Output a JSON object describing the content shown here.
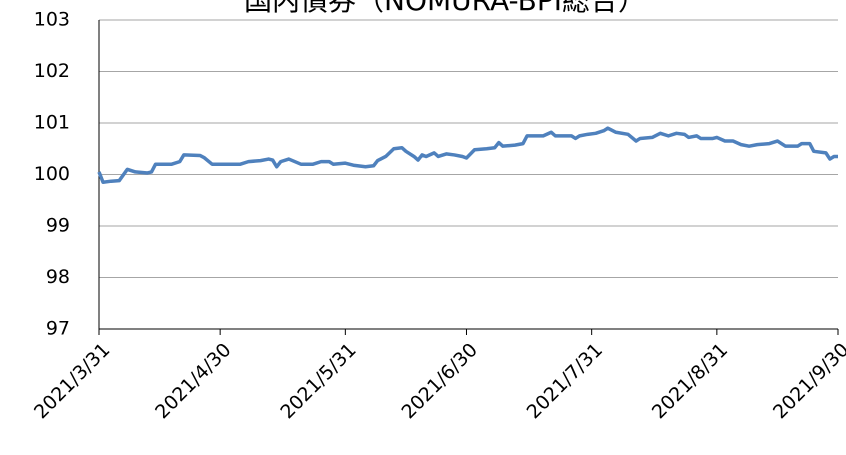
{
  "chart_data": {
    "type": "line",
    "title": "国内債券（NOMURA-BPI総合）",
    "x": [
      "2021/3/31",
      "2021/4/1",
      "2021/4/3",
      "2021/4/5",
      "2021/4/7",
      "2021/4/9",
      "2021/4/12",
      "2021/4/13",
      "2021/4/14",
      "2021/4/18",
      "2021/4/20",
      "2021/4/21",
      "2021/4/25",
      "2021/4/26",
      "2021/4/28",
      "2021/5/5",
      "2021/5/7",
      "2021/5/10",
      "2021/5/12",
      "2021/5/13",
      "2021/5/14",
      "2021/5/15",
      "2021/5/17",
      "2021/5/20",
      "2021/5/23",
      "2021/5/25",
      "2021/5/27",
      "2021/5/28",
      "2021/5/31",
      "2021/6/2",
      "2021/6/5",
      "2021/6/7",
      "2021/6/8",
      "2021/6/10",
      "2021/6/12",
      "2021/6/14",
      "2021/6/15",
      "2021/6/17",
      "2021/6/18",
      "2021/6/19",
      "2021/6/20",
      "2021/6/22",
      "2021/6/23",
      "2021/6/25",
      "2021/6/27",
      "2021/6/29",
      "2021/6/30",
      "2021/7/2",
      "2021/7/5",
      "2021/7/7",
      "2021/7/8",
      "2021/7/9",
      "2021/7/12",
      "2021/7/14",
      "2021/7/15",
      "2021/7/18",
      "2021/7/19",
      "2021/7/21",
      "2021/7/22",
      "2021/7/26",
      "2021/7/27",
      "2021/7/28",
      "2021/7/30",
      "2021/8/1",
      "2021/8/3",
      "2021/8/4",
      "2021/8/6",
      "2021/8/9",
      "2021/8/11",
      "2021/8/12",
      "2021/8/15",
      "2021/8/17",
      "2021/8/19",
      "2021/8/21",
      "2021/8/23",
      "2021/8/24",
      "2021/8/26",
      "2021/8/27",
      "2021/8/30",
      "2021/8/31",
      "2021/9/2",
      "2021/9/4",
      "2021/9/6",
      "2021/9/8",
      "2021/9/10",
      "2021/9/13",
      "2021/9/15",
      "2021/9/17",
      "2021/9/20",
      "2021/9/21",
      "2021/9/23",
      "2021/9/24",
      "2021/9/27",
      "2021/9/28",
      "2021/9/29",
      "2021/9/30"
    ],
    "series": [
      {
        "color": "#4f81bd",
        "values": [
          100.05,
          99.85,
          99.87,
          99.88,
          100.1,
          100.05,
          100.03,
          100.05,
          100.2,
          100.2,
          100.25,
          100.38,
          100.37,
          100.33,
          100.2,
          100.2,
          100.25,
          100.27,
          100.3,
          100.28,
          100.15,
          100.25,
          100.3,
          100.2,
          100.2,
          100.25,
          100.25,
          100.2,
          100.22,
          100.18,
          100.15,
          100.17,
          100.27,
          100.35,
          100.5,
          100.52,
          100.45,
          100.35,
          100.28,
          100.38,
          100.35,
          100.42,
          100.35,
          100.4,
          100.38,
          100.35,
          100.32,
          100.48,
          100.5,
          100.52,
          100.62,
          100.55,
          100.57,
          100.6,
          100.75,
          100.75,
          100.75,
          100.82,
          100.75,
          100.75,
          100.7,
          100.75,
          100.78,
          100.8,
          100.85,
          100.9,
          100.82,
          100.78,
          100.65,
          100.7,
          100.72,
          100.8,
          100.75,
          100.8,
          100.78,
          100.72,
          100.75,
          100.7,
          100.7,
          100.72,
          100.65,
          100.65,
          100.58,
          100.55,
          100.58,
          100.6,
          100.65,
          100.55,
          100.55,
          100.6,
          100.6,
          100.45,
          100.42,
          100.3,
          100.35,
          100.35
        ]
      }
    ],
    "xlim": [
      "2021/3/31",
      "2021/9/30"
    ],
    "xticks": [
      "2021/3/31",
      "2021/4/30",
      "2021/5/31",
      "2021/6/30",
      "2021/7/31",
      "2021/8/31",
      "2021/9/30"
    ],
    "ylim": [
      97,
      103
    ],
    "yticks": [
      97,
      98,
      99,
      100,
      101,
      102,
      103
    ],
    "grid": true
  }
}
